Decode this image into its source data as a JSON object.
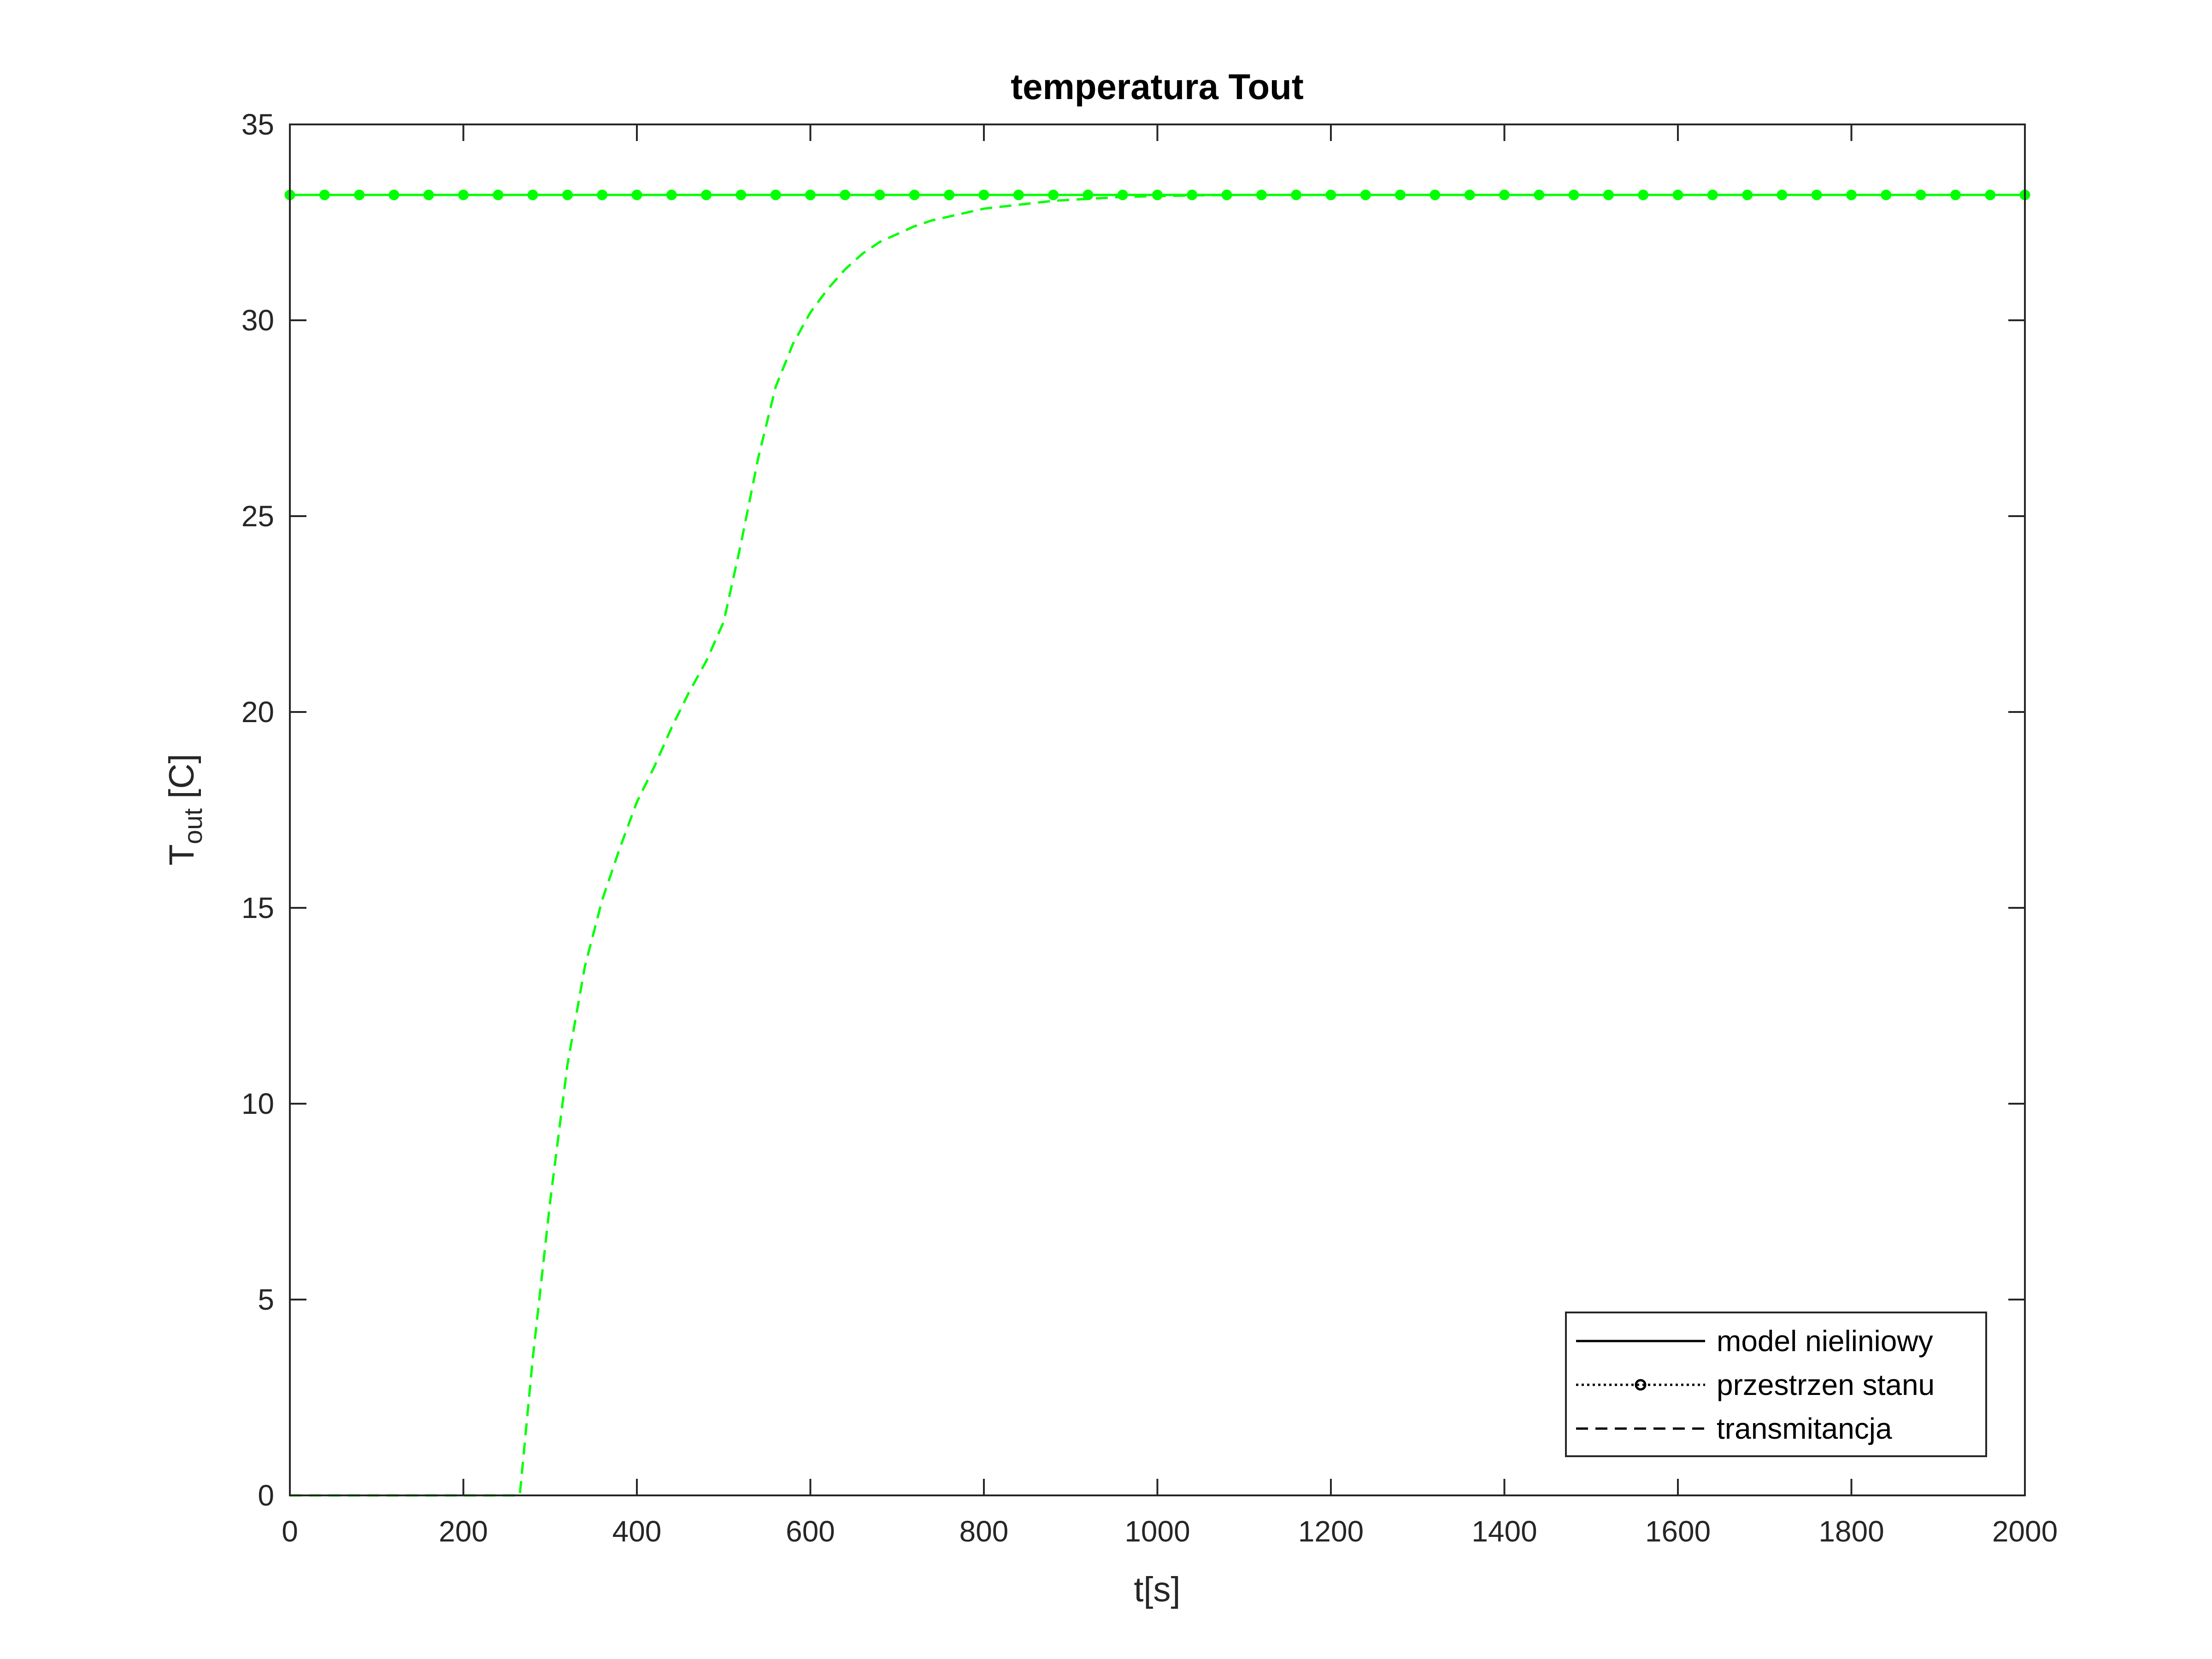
{
  "chart_data": {
    "type": "line",
    "title": "temperatura Tout",
    "xlabel": "t[s]",
    "ylabel_main": "T",
    "ylabel_sub": "out",
    "ylabel_unit": " [C]",
    "xlim": [
      0,
      2000
    ],
    "ylim": [
      0,
      35
    ],
    "xticks": [
      0,
      200,
      400,
      600,
      800,
      1000,
      1200,
      1400,
      1600,
      1800,
      2000
    ],
    "yticks": [
      0,
      5,
      10,
      15,
      20,
      25,
      30,
      35
    ],
    "grid": false,
    "legend_position": "bottom-right",
    "series": [
      {
        "name": "model nieliniowy",
        "style": "solid",
        "legend_color": "#000000",
        "color": "#00ff00",
        "x": [
          0,
          2000
        ],
        "y": [
          33.2,
          33.2
        ]
      },
      {
        "name": "przestrzen stanu",
        "style": "dotted-marker",
        "legend_color": "#000000",
        "color": "#00ff00",
        "x": [
          0,
          40,
          80,
          120,
          160,
          200,
          240,
          280,
          320,
          360,
          400,
          440,
          480,
          520,
          560,
          600,
          640,
          680,
          720,
          760,
          800,
          840,
          880,
          920,
          960,
          1000,
          1040,
          1080,
          1120,
          1160,
          1200,
          1240,
          1280,
          1320,
          1360,
          1400,
          1440,
          1480,
          1520,
          1560,
          1600,
          1640,
          1680,
          1720,
          1760,
          1800,
          1840,
          1880,
          1920,
          1960,
          2000
        ],
        "y": [
          33.2,
          33.2,
          33.2,
          33.2,
          33.2,
          33.2,
          33.2,
          33.2,
          33.2,
          33.2,
          33.2,
          33.2,
          33.2,
          33.2,
          33.2,
          33.2,
          33.2,
          33.2,
          33.2,
          33.2,
          33.2,
          33.2,
          33.2,
          33.2,
          33.2,
          33.2,
          33.2,
          33.2,
          33.2,
          33.2,
          33.2,
          33.2,
          33.2,
          33.2,
          33.2,
          33.2,
          33.2,
          33.2,
          33.2,
          33.2,
          33.2,
          33.2,
          33.2,
          33.2,
          33.2,
          33.2,
          33.2,
          33.2,
          33.2,
          33.2,
          33.2
        ]
      },
      {
        "name": "transmitancja",
        "style": "dashed",
        "legend_color": "#000000",
        "color": "#00ff00",
        "x": [
          0,
          260,
          265,
          280,
          300,
          320,
          340,
          360,
          380,
          400,
          420,
          440,
          460,
          480,
          500,
          520,
          540,
          560,
          580,
          600,
          620,
          640,
          660,
          680,
          700,
          720,
          740,
          760,
          780,
          800,
          840,
          880,
          920,
          960,
          1000,
          1050,
          1100,
          1200,
          1400,
          1600,
          1800,
          2000
        ],
        "y": [
          0,
          0,
          0,
          3.5,
          7.5,
          11,
          13.5,
          15.2,
          16.5,
          17.7,
          18.6,
          19.6,
          20.5,
          21.3,
          22.3,
          24.3,
          26.5,
          28.3,
          29.4,
          30.2,
          30.8,
          31.3,
          31.7,
          32.0,
          32.2,
          32.4,
          32.55,
          32.65,
          32.75,
          32.85,
          32.95,
          33.05,
          33.1,
          33.15,
          33.17,
          33.19,
          33.2,
          33.2,
          33.2,
          33.2,
          33.2,
          33.2
        ]
      }
    ]
  }
}
